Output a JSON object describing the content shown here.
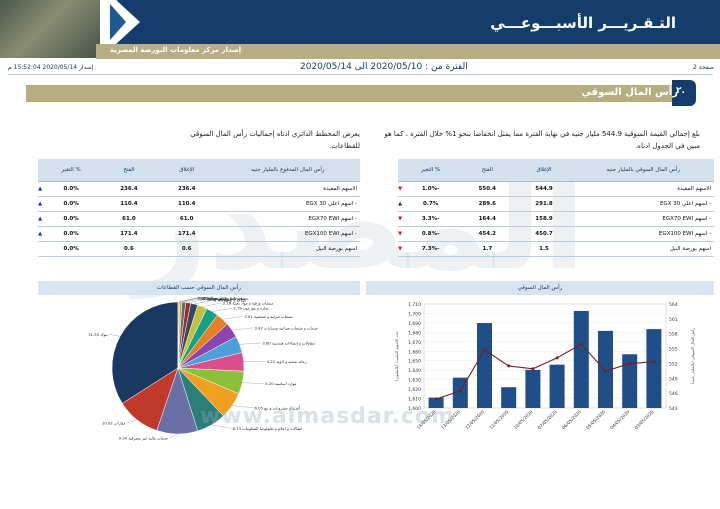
{
  "header": {
    "title": "التـقـريـــر الأسبـــوعـــي",
    "subtitle": "إصدار مركز معلومات البورصة المصرية",
    "page_label": "صفحة 2",
    "period": "الفترة من : 2020/05/10 الى 2020/05/14",
    "release": "إصدار 2020/05/14 15:52:04 م"
  },
  "section": {
    "number": "٢.",
    "title": "رأس المال السوقي"
  },
  "intro_right": "بلغ إجمالي القيمة السوقية 544.9 مليار جنيه في نهاية الفترة مما يمثل انخفاضا بنحو 1% خلال الفترة ، كما هو مبين في الجدول ادناه.",
  "intro_left": "يعرض المخطط الدائري ادناه إجماليات رأس المال السوقي للقطاعات.",
  "table_market": {
    "headers": [
      "رأس المال السوقي بالمليار جنيه",
      "الإغلاق",
      "الفتح",
      "% التغير"
    ],
    "rows": [
      {
        "name": "الاسهم المقيدة",
        "close": "544.9",
        "open": "550.4",
        "chg": "-1.0%",
        "dir": "down"
      },
      {
        "name": "- اسهم اعلي 30 EGX",
        "close": "291.8",
        "open": "289.6",
        "chg": "0.7%",
        "dir": "up"
      },
      {
        "name": "- اسهم EGX70 EWI",
        "close": "158.9",
        "open": "164.4",
        "chg": "-3.3%",
        "dir": "down"
      },
      {
        "name": "- اسهم EGX100 EWI",
        "close": "450.7",
        "open": "454.2",
        "chg": "-0.8%",
        "dir": "down"
      },
      {
        "name": "اسهم بورصة النيل",
        "close": "1.5",
        "open": "1.7",
        "chg": "-7.3%",
        "dir": "down"
      }
    ]
  },
  "table_paid": {
    "headers": [
      "رأس المال المدفوع بالمليار جنيه",
      "الإغلاق",
      "الفتح",
      "% التغير"
    ],
    "rows": [
      {
        "name": "الاسهم المقيدة",
        "close": "236.4",
        "open": "236.4",
        "chg": "0.0%",
        "dir": "up"
      },
      {
        "name": "- اسهم اعلي 30 EGX",
        "close": "110.4",
        "open": "110.4",
        "chg": "0.0%",
        "dir": "up"
      },
      {
        "name": "- اسهم EGX70 EWI",
        "close": "61.0",
        "open": "61.0",
        "chg": "0.0%",
        "dir": "up"
      },
      {
        "name": "- اسهم EGX100 EWI",
        "close": "171.4",
        "open": "171.4",
        "chg": "0.0%",
        "dir": "up"
      },
      {
        "name": "اسهم بورصة النيل",
        "close": "0.6",
        "open": "0.6",
        "chg": "0.0%",
        "dir": "none"
      }
    ]
  },
  "chart_titles": {
    "bar": "رأس المال السوقي",
    "pie": "رأس المال السوقي حسب القطاعات"
  },
  "chart_data": [
    {
      "type": "bar",
      "title": "رأس المال السوقي",
      "categories": [
        "14/05/2020",
        "13/05/2020",
        "12/05/2020",
        "11/05/2020",
        "10/05/2020",
        "07/05/2020",
        "06/05/2020",
        "05/05/2020",
        "04/05/2020",
        "03/05/2020"
      ],
      "series": [
        {
          "name": "bars",
          "axis": "left",
          "values": [
            1.612,
            1.635,
            1.698,
            1.624,
            1.644,
            1.65,
            1.712,
            1.689,
            1.662,
            1.691
          ],
          "color": "#1f4e88"
        },
        {
          "name": "line",
          "axis": "right",
          "values": [
            544.9,
            546.6,
            555.3,
            551.9,
            551.3,
            553.6,
            556.5,
            550.8,
            552.4,
            552.8
          ],
          "color": "#7a1e22"
        }
      ],
      "left_axis": {
        "ticks": [
          "1,710",
          "1,700",
          "1,690",
          "1,680",
          "1,670",
          "1,660",
          "1,650",
          "1,640",
          "1,630",
          "1,620",
          "1,610",
          "1,600"
        ],
        "ylim": [
          1.6,
          1.72
        ]
      },
      "right_axis": {
        "ticks": [
          "564",
          "561",
          "558",
          "555",
          "552",
          "549",
          "546",
          "543"
        ],
        "ylim": [
          543,
          565
        ]
      },
      "left_label": "عدد الاسهم المقيدة (بالمليون)",
      "right_label": "رأس المال السوقي (بالمليار جنيه)"
    },
    {
      "type": "pie",
      "title": "رأس المال السوقي حسب القطاعات",
      "slices": [
        {
          "label": "بنوك",
          "value": 31.55,
          "color": "#1b3764"
        },
        {
          "label": "عقارات",
          "value": 10.02,
          "color": "#c0392b"
        },
        {
          "label": "خدمات مالية غير مصرفية",
          "value": 9.3,
          "color": "#6a6fa6"
        },
        {
          "label": "اتصالات و اعلام و تكنولوجيا المعلومات",
          "value": 6.73,
          "color": "#2a7f7a"
        },
        {
          "label": "أغذية و مشروبات و تبغ",
          "value": 6.05,
          "color": "#f0a020"
        },
        {
          "label": "موارد أساسية",
          "value": 5.2,
          "color": "#8cbf3a"
        },
        {
          "label": "رعاية صحية و ادوية",
          "value": 4.22,
          "color": "#d94f8a"
        },
        {
          "label": "مقاولات و إنشاءات هندسية",
          "value": 3.8,
          "color": "#4a9fd8"
        },
        {
          "label": "خدمات و منتجات صناعية وسيارات",
          "value": 3.42,
          "color": "#8e44ad"
        },
        {
          "label": "منتجات منزلية و شخصية",
          "value": 3.01,
          "color": "#e67e22"
        },
        {
          "label": "تجارة و موزعون",
          "value": 2.79,
          "color": "#16a085"
        },
        {
          "label": "منتجات ورقية و مواد تعبئة",
          "value": 2.18,
          "color": "#c0c040"
        },
        {
          "label": "سياحة و ترفيه",
          "value": 1.63,
          "color": "#34495e"
        },
        {
          "label": "كيماويات",
          "value": 1.1,
          "color": "#9b2c2c"
        },
        {
          "label": "خدمات النقل و الشحن",
          "value": 0.89,
          "color": "#5d6d7e"
        },
        {
          "label": "غاز و بترول",
          "value": 0.5,
          "color": "#d4ac0d"
        },
        {
          "label": "منسوجات و سلع معمرة",
          "value": 0.22,
          "color": "#7f8c8d"
        },
        {
          "label": "مرافق",
          "value": 0.14,
          "color": "#a04000"
        }
      ]
    }
  ],
  "watermark": {
    "text": "المصدر",
    "url": "www.almasdar.com"
  }
}
